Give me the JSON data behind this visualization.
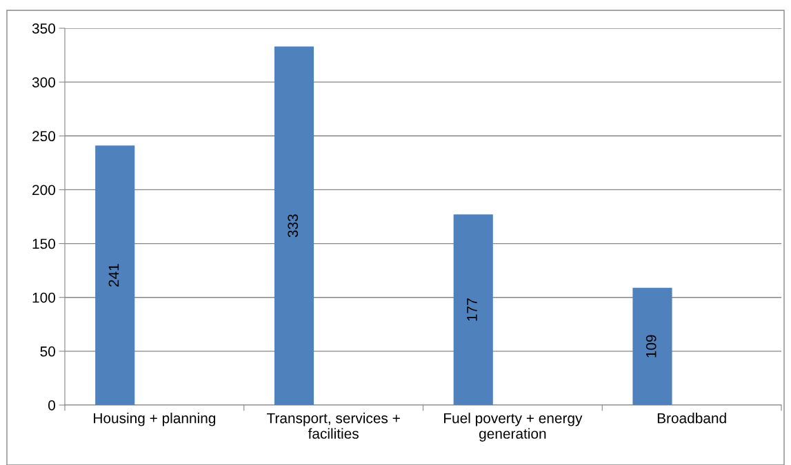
{
  "chart_data": {
    "type": "bar",
    "categories": [
      "Housing + planning",
      "Transport, services +\nfacilities",
      "Fuel poverty + energy\ngeneration",
      "Broadband"
    ],
    "values": [
      241,
      333,
      177,
      109
    ],
    "color": "#4f81bd",
    "ylim": [
      0,
      350
    ],
    "yticks": [
      0,
      50,
      100,
      150,
      200,
      250,
      300,
      350
    ],
    "grid": "y",
    "data_labels": true
  }
}
